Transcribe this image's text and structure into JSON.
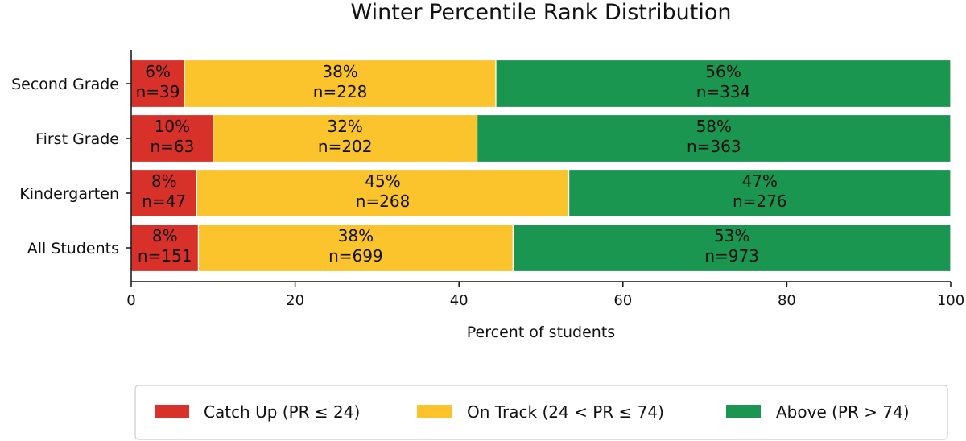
{
  "chart_data": {
    "type": "bar",
    "orientation": "horizontal",
    "stacked": true,
    "title": "Winter Percentile Rank Distribution",
    "xlabel": "Percent of students",
    "ylabel": "",
    "xlim": [
      0,
      100
    ],
    "xticks": [
      0,
      20,
      40,
      60,
      80,
      100
    ],
    "grid": false,
    "legend_position": "bottom",
    "categories": [
      "Second Grade",
      "First Grade",
      "Kindergarten",
      "All Students"
    ],
    "series": [
      {
        "name": "Catch Up (PR ≤ 24)",
        "color": "#d7312a",
        "values": [
          6.5,
          10,
          8,
          8.2
        ],
        "labels": [
          "6%",
          "10%",
          "8%",
          "8%"
        ],
        "counts": [
          "n=39",
          "n=63",
          "n=47",
          "n=151"
        ]
      },
      {
        "name": "On Track (24 < PR ≤ 74)",
        "color": "#fbc32c",
        "values": [
          38,
          32.2,
          45.4,
          38.4
        ],
        "labels": [
          "38%",
          "32%",
          "45%",
          "38%"
        ],
        "counts": [
          "n=228",
          "n=202",
          "n=268",
          "n=699"
        ]
      },
      {
        "name": "Above (PR > 74)",
        "color": "#1b9650",
        "values": [
          55.5,
          57.8,
          46.6,
          53.4
        ],
        "labels": [
          "56%",
          "58%",
          "47%",
          "53%"
        ],
        "counts": [
          "n=334",
          "n=363",
          "n=276",
          "n=973"
        ]
      }
    ]
  }
}
